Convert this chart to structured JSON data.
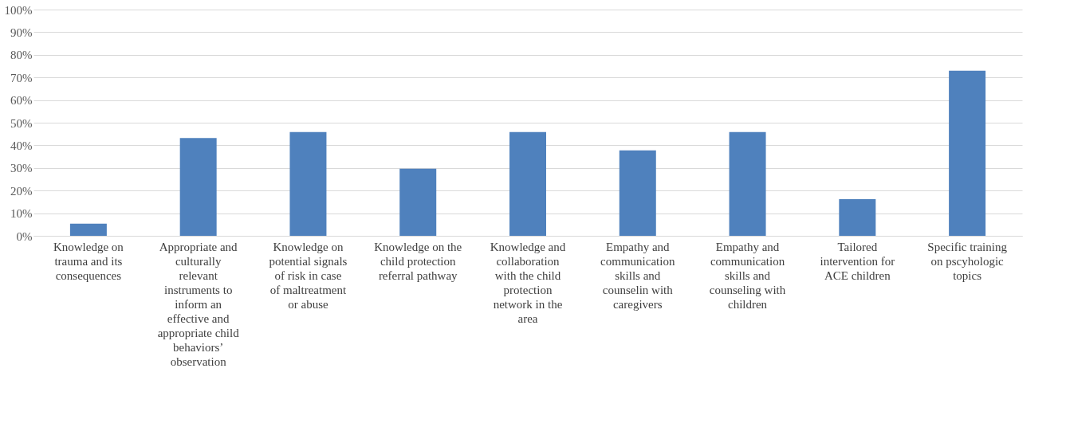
{
  "chart_data": {
    "type": "bar",
    "categories": [
      "Knowledge on trauma and its consequences",
      "Appropriate and culturally relevant instruments to inform an effective and appropriate child behaviors’ observation",
      "Knowledge on potential signals of risk in case of maltreatment or abuse",
      "Knowledge on the child protection referral pathway",
      "Knowledge and collaboration with the child protection network in the area",
      "Empathy and communication skills and counselin with caregivers",
      "Empathy and communication skills and counseling with children",
      "Tailored intervention for ACE children",
      "Specific training on pscyhologic topics"
    ],
    "values": [
      5.4,
      43.2,
      45.9,
      29.7,
      45.9,
      37.8,
      45.9,
      16.2,
      73.0
    ],
    "color": "#4f81bd",
    "ylim": [
      0,
      100
    ],
    "yticks": [
      {
        "value": 0,
        "label": "0%"
      },
      {
        "value": 10,
        "label": "10%"
      },
      {
        "value": 20,
        "label": "20%"
      },
      {
        "value": 30,
        "label": "30%"
      },
      {
        "value": 40,
        "label": "40%"
      },
      {
        "value": 50,
        "label": "50%"
      },
      {
        "value": 60,
        "label": "60%"
      },
      {
        "value": 70,
        "label": "70%"
      },
      {
        "value": 80,
        "label": "80%"
      },
      {
        "value": 90,
        "label": "90%"
      },
      {
        "value": 100,
        "label": "100%"
      }
    ],
    "grid": "y"
  }
}
